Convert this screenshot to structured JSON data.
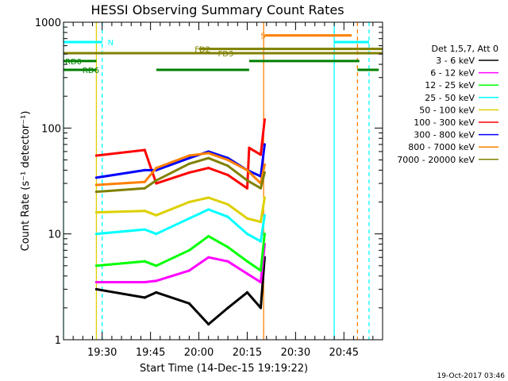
{
  "chart_data": {
    "type": "line",
    "title": "HESSI Observing Summary Count Rates",
    "xlabel": "Start Time (14-Dec-15 19:19:22)",
    "ylabel": "Count Rate (s⁻¹ detector⁻¹)",
    "x_unit": "minutes",
    "xlim": [
      19.3,
      20.95
    ],
    "ylim": [
      1,
      1000
    ],
    "y_scale": "log",
    "x_ticks": [
      {
        "t": 19.5,
        "label": "19:30"
      },
      {
        "t": 19.75,
        "label": "19:45"
      },
      {
        "t": 20.0,
        "label": "20:00"
      },
      {
        "t": 20.25,
        "label": "20:15"
      },
      {
        "t": 20.5,
        "label": "20:30"
      },
      {
        "t": 20.75,
        "label": "20:45"
      }
    ],
    "y_ticks": [
      {
        "v": 1,
        "label": "1"
      },
      {
        "v": 10,
        "label": "10"
      },
      {
        "v": 100,
        "label": "100"
      },
      {
        "v": 1000,
        "label": "1000"
      }
    ],
    "legend_header": "Det 1,5,7, Att 0",
    "legend_position": "right",
    "series": [
      {
        "name": "3 - 6 keV",
        "color": "#000000",
        "points": [
          [
            19.47,
            3.0
          ],
          [
            19.72,
            2.5
          ],
          [
            19.78,
            2.8
          ],
          [
            19.95,
            2.2
          ],
          [
            20.05,
            1.4
          ],
          [
            20.15,
            2.0
          ],
          [
            20.25,
            2.8
          ],
          [
            20.32,
            2.0
          ],
          [
            20.34,
            6.0
          ]
        ]
      },
      {
        "name": "6 - 12 keV",
        "color": "#ff00ff",
        "points": [
          [
            19.47,
            3.5
          ],
          [
            19.72,
            3.5
          ],
          [
            19.78,
            3.6
          ],
          [
            19.95,
            4.5
          ],
          [
            20.05,
            6.0
          ],
          [
            20.15,
            5.5
          ],
          [
            20.25,
            4.2
          ],
          [
            20.32,
            3.5
          ],
          [
            20.34,
            8.0
          ]
        ]
      },
      {
        "name": "12 - 25 keV",
        "color": "#00ff00",
        "points": [
          [
            19.47,
            5.0
          ],
          [
            19.72,
            5.5
          ],
          [
            19.78,
            5.0
          ],
          [
            19.95,
            7.0
          ],
          [
            20.05,
            9.5
          ],
          [
            20.15,
            7.5
          ],
          [
            20.25,
            5.5
          ],
          [
            20.32,
            4.5
          ],
          [
            20.34,
            10.0
          ]
        ]
      },
      {
        "name": "25 - 50 keV",
        "color": "#00ffff",
        "points": [
          [
            19.47,
            10.0
          ],
          [
            19.72,
            11.0
          ],
          [
            19.78,
            10.0
          ],
          [
            19.95,
            14.0
          ],
          [
            20.05,
            17.0
          ],
          [
            20.15,
            14.5
          ],
          [
            20.25,
            10.0
          ],
          [
            20.32,
            8.5
          ],
          [
            20.34,
            15.0
          ]
        ]
      },
      {
        "name": "50 - 100 keV",
        "color": "#ddd000",
        "points": [
          [
            19.47,
            16.0
          ],
          [
            19.72,
            16.5
          ],
          [
            19.78,
            15.0
          ],
          [
            19.95,
            20.0
          ],
          [
            20.05,
            22.0
          ],
          [
            20.15,
            19.0
          ],
          [
            20.25,
            14.0
          ],
          [
            20.32,
            13.0
          ],
          [
            20.34,
            22.0
          ]
        ]
      },
      {
        "name": "100 - 300 keV",
        "color": "#ff0000",
        "points": [
          [
            19.47,
            55.0
          ],
          [
            19.72,
            62.0
          ],
          [
            19.78,
            30.0
          ],
          [
            19.95,
            38.0
          ],
          [
            20.05,
            42.0
          ],
          [
            20.15,
            36.0
          ],
          [
            20.25,
            27.0
          ],
          [
            20.26,
            65.0
          ],
          [
            20.32,
            56.0
          ],
          [
            20.34,
            120.0
          ]
        ]
      },
      {
        "name": "300 - 800 keV",
        "color": "#0000ff",
        "points": [
          [
            19.47,
            34.0
          ],
          [
            19.72,
            40.0
          ],
          [
            19.78,
            40.0
          ],
          [
            19.95,
            52.0
          ],
          [
            20.05,
            60.0
          ],
          [
            20.15,
            52.0
          ],
          [
            20.25,
            40.0
          ],
          [
            20.32,
            35.0
          ],
          [
            20.34,
            70.0
          ]
        ]
      },
      {
        "name": "800 - 7000 keV",
        "color": "#ff8000",
        "points": [
          [
            19.47,
            29.0
          ],
          [
            19.72,
            31.0
          ],
          [
            19.78,
            42.0
          ],
          [
            19.95,
            55.0
          ],
          [
            20.05,
            58.0
          ],
          [
            20.15,
            50.0
          ],
          [
            20.25,
            40.0
          ],
          [
            20.32,
            30.0
          ],
          [
            20.34,
            45.0
          ]
        ]
      },
      {
        "name": "7000 - 20000 keV",
        "color": "#808000",
        "points": [
          [
            19.47,
            25.0
          ],
          [
            19.72,
            27.0
          ],
          [
            19.78,
            32.0
          ],
          [
            19.95,
            46.0
          ],
          [
            20.05,
            52.0
          ],
          [
            20.15,
            44.0
          ],
          [
            20.25,
            32.0
          ],
          [
            20.32,
            27.0
          ],
          [
            20.34,
            38.0
          ]
        ]
      }
    ],
    "state_bars": [
      {
        "label": "N",
        "color": "#00ffff",
        "level": 650,
        "segments": [
          [
            19.3,
            19.5
          ],
          [
            20.7,
            20.88
          ]
        ],
        "label_t": 19.52
      },
      {
        "label": "S",
        "color": "#ff8000",
        "level": 750,
        "segments": [
          [
            20.34,
            20.79
          ]
        ],
        "label_t": 20.31
      },
      {
        "label": "FD2",
        "color": "#808000",
        "level": 560,
        "segments": [
          [
            20.0,
            20.95
          ]
        ],
        "label_t": 19.97
      },
      {
        "label": "FD3",
        "color": "#808000",
        "level": 510,
        "segments": [
          [
            19.3,
            20.95
          ]
        ],
        "label_t": 20.09
      },
      {
        "label": "RD0",
        "color": "#008000",
        "level": 430,
        "segments": [
          [
            19.3,
            19.47
          ],
          [
            20.26,
            20.83
          ]
        ],
        "label_t": 19.3
      },
      {
        "label": "RD6",
        "color": "#008000",
        "level": 355,
        "segments": [
          [
            19.3,
            19.47
          ],
          [
            19.78,
            20.26
          ],
          [
            20.82,
            20.93
          ]
        ],
        "label_t": 19.39
      }
    ],
    "vertical_markers": [
      {
        "t": 19.3,
        "color": "#00ffff",
        "style": "solid"
      },
      {
        "t": 19.47,
        "color": "#ddd000",
        "style": "solid"
      },
      {
        "t": 19.5,
        "color": "#00ffff",
        "style": "dashed"
      },
      {
        "t": 20.335,
        "color": "#ff8000",
        "style": "solid"
      },
      {
        "t": 20.7,
        "color": "#00ffff",
        "style": "solid"
      },
      {
        "t": 20.82,
        "color": "#ff8000",
        "style": "dashed"
      },
      {
        "t": 20.88,
        "color": "#00ffff",
        "style": "dashed"
      }
    ]
  },
  "footer": {
    "date": "19-Oct-2017 03:46"
  }
}
